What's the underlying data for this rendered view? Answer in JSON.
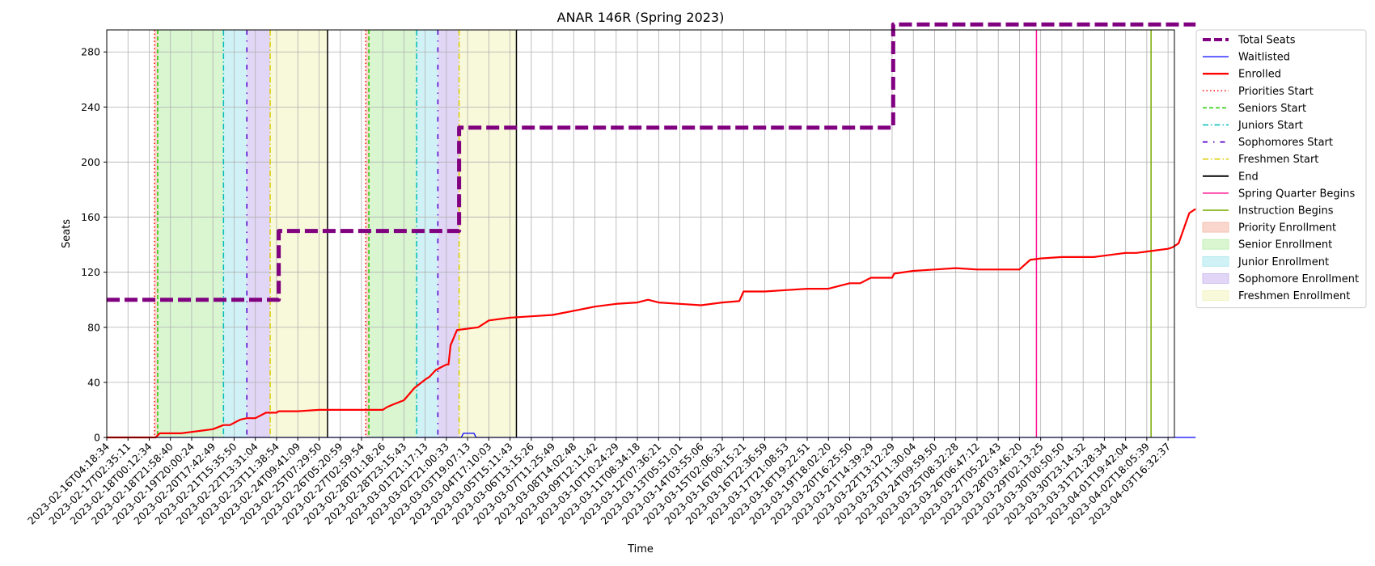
{
  "chart_data": {
    "type": "line",
    "title": "ANAR 146R (Spring 2023)",
    "xlabel": "Time",
    "ylabel": "Seats",
    "ylim": [
      0,
      296
    ],
    "yticks": [
      0,
      40,
      80,
      120,
      160,
      200,
      240,
      280
    ],
    "grid": true,
    "legend_placement": "outside-right",
    "x_tick_labels": [
      "2023-02-16T04:18:34",
      "2023-02-17T02:35:11",
      "2023-02-18T00:12:34",
      "2023-02-18T21:58:40",
      "2023-02-19T20:00:24",
      "2023-02-20T17:42:49",
      "2023-02-21T15:35:50",
      "2023-02-22T13:31:04",
      "2023-02-23T11:38:54",
      "2023-02-24T09:41:09",
      "2023-02-25T07:29:50",
      "2023-02-26T05:20:59",
      "2023-02-27T02:59:54",
      "2023-02-28T01:18:26",
      "2023-02-28T23:15:43",
      "2023-03-01T21:17:13",
      "2023-03-02T21:00:33",
      "2023-03-03T19:07:13",
      "2023-03-04T17:10:03",
      "2023-03-05T15:11:43",
      "2023-03-06T13:15:26",
      "2023-03-07T11:25:49",
      "2023-03-08T14:02:48",
      "2023-03-09T12:11:42",
      "2023-03-10T10:24:29",
      "2023-03-11T08:34:18",
      "2023-03-12T07:36:21",
      "2023-03-13T05:51:01",
      "2023-03-14T03:55:06",
      "2023-03-15T02:06:32",
      "2023-03-16T00:15:21",
      "2023-03-16T22:36:59",
      "2023-03-17T21:08:53",
      "2023-03-18T19:22:51",
      "2023-03-19T18:02:20",
      "2023-03-20T16:25:50",
      "2023-03-21T14:39:29",
      "2023-03-22T13:12:29",
      "2023-03-23T11:30:04",
      "2023-03-24T09:59:50",
      "2023-03-25T08:32:28",
      "2023-03-26T06:47:12",
      "2023-03-27T05:22:43",
      "2023-03-28T03:46:20",
      "2023-03-29T02:13:25",
      "2023-03-30T00:50:50",
      "2023-03-30T23:14:32",
      "2023-03-31T21:28:34",
      "2023-04-01T19:42:04",
      "2023-04-02T18:05:39",
      "2023-04-03T16:32:37"
    ],
    "x_unit_note": "x values below are tick-index positions along the time axis",
    "series": [
      {
        "name": "Total Seats",
        "color": "#800080",
        "style": "dashed-thick",
        "x": [
          0,
          8.1,
          8.1,
          16.6,
          16.6,
          37.05,
          37.05,
          51.3
        ],
        "y": [
          100,
          100,
          150,
          150,
          225,
          225,
          300,
          300
        ]
      },
      {
        "name": "Waitlisted",
        "color": "#0000ff",
        "style": "solid",
        "x": [
          0,
          16.7,
          16.8,
          17.3,
          17.4,
          51.3
        ],
        "y": [
          0,
          0,
          3,
          3,
          0,
          0
        ]
      },
      {
        "name": "Enrolled",
        "color": "#ff0000",
        "style": "solid-thick",
        "x": [
          0,
          2.3,
          2.5,
          3,
          3.5,
          4,
          4.5,
          5,
          5.5,
          5.8,
          6.3,
          6.6,
          7,
          7.5,
          8,
          8.1,
          9,
          10,
          11,
          12,
          13,
          13.2,
          13.5,
          14,
          14.5,
          15,
          15.2,
          15.5,
          16,
          16.1,
          16.2,
          16.5,
          17,
          17.5,
          18,
          19,
          20,
          21,
          22,
          23,
          24,
          25,
          25.5,
          26,
          27,
          28,
          29,
          29.8,
          30,
          31,
          32,
          33,
          34,
          35,
          35.5,
          36,
          37,
          37.1,
          38,
          39,
          40,
          41,
          42,
          43,
          43.5,
          44,
          45,
          46,
          46.5,
          47,
          48,
          48.5,
          49,
          49.5,
          50,
          50.2,
          50.5,
          51,
          51.3
        ],
        "y": [
          0,
          0,
          3,
          3,
          3,
          4,
          5,
          6,
          9,
          9,
          13,
          14,
          14,
          18,
          18,
          19,
          19,
          20,
          20,
          20,
          20,
          22,
          24,
          27,
          36,
          42,
          44,
          49,
          53,
          53,
          67,
          78,
          79,
          80,
          85,
          87,
          88,
          89,
          92,
          95,
          97,
          98,
          100,
          98,
          97,
          96,
          98,
          99,
          106,
          106,
          107,
          108,
          108,
          112,
          112,
          116,
          116,
          119,
          121,
          122,
          123,
          122,
          122,
          122,
          129,
          130,
          131,
          131,
          131,
          132,
          134,
          134,
          135,
          136,
          137,
          138,
          141,
          163,
          166
        ]
      }
    ],
    "vlines": [
      {
        "name": "Priorities Start",
        "color": "#ff0000",
        "style": "dotted",
        "x": [
          2.25,
          12.2
        ]
      },
      {
        "name": "Seniors Start",
        "color": "#22cc00",
        "style": "dashed",
        "x": [
          2.4,
          12.35
        ]
      },
      {
        "name": "Juniors Start",
        "color": "#00bbbb",
        "style": "dashdot",
        "x": [
          5.5,
          14.6
        ]
      },
      {
        "name": "Sophomores Start",
        "color": "#5500cc",
        "style": "loosedashdot",
        "x": [
          6.6,
          15.6
        ]
      },
      {
        "name": "Freshmen Start",
        "color": "#ddcc00",
        "style": "dashdot",
        "x": [
          7.7,
          16.6
        ]
      },
      {
        "name": "End",
        "color": "#000000",
        "style": "solid",
        "x": [
          10.4,
          19.3
        ]
      },
      {
        "name": "Spring Quarter Begins",
        "color": "#ff1493",
        "style": "solid",
        "x": [
          43.8
        ]
      },
      {
        "name": "Instruction Begins",
        "color": "#77aa00",
        "style": "solid",
        "x": [
          49.2
        ]
      }
    ],
    "spans": [
      {
        "name": "Priority Enrollment",
        "color": "#f4b6a4",
        "ranges": [
          [
            2.25,
            2.4
          ],
          [
            12.2,
            12.35
          ]
        ]
      },
      {
        "name": "Senior Enrollment",
        "color": "#b9eeab",
        "ranges": [
          [
            2.4,
            5.5
          ],
          [
            12.35,
            14.6
          ]
        ]
      },
      {
        "name": "Junior Enrollment",
        "color": "#a9e7ee",
        "ranges": [
          [
            5.5,
            6.6
          ],
          [
            14.6,
            15.6
          ]
        ]
      },
      {
        "name": "Sophomore Enrollment",
        "color": "#c9b5ee",
        "ranges": [
          [
            6.6,
            7.7
          ],
          [
            15.6,
            16.6
          ]
        ]
      },
      {
        "name": "Freshmen Enrollment",
        "color": "#f2f2bb",
        "ranges": [
          [
            7.7,
            10.4
          ],
          [
            16.6,
            19.3
          ]
        ]
      }
    ],
    "legend": [
      {
        "label": "Total Seats",
        "kind": "line",
        "color": "#800080",
        "dash": "10,4",
        "width": 4
      },
      {
        "label": "Waitlisted",
        "kind": "line",
        "color": "#0000ff",
        "dash": "",
        "width": 1.2
      },
      {
        "label": "Enrolled",
        "kind": "line",
        "color": "#ff0000",
        "dash": "",
        "width": 2.4
      },
      {
        "label": "Priorities Start",
        "kind": "line",
        "color": "#ff0000",
        "dash": "1.5,3",
        "width": 1.5
      },
      {
        "label": "Seniors Start",
        "kind": "line",
        "color": "#22cc00",
        "dash": "5,3",
        "width": 1.5
      },
      {
        "label": "Juniors Start",
        "kind": "line",
        "color": "#00bbbb",
        "dash": "7,3,1.5,3",
        "width": 1.5
      },
      {
        "label": "Sophomores Start",
        "kind": "line",
        "color": "#5500cc",
        "dash": "6,7,1.5,7",
        "width": 1.8
      },
      {
        "label": "Freshmen Start",
        "kind": "line",
        "color": "#ddcc00",
        "dash": "7,3,1.5,3",
        "width": 1.5
      },
      {
        "label": "End",
        "kind": "line",
        "color": "#000000",
        "dash": "",
        "width": 1.8
      },
      {
        "label": "Spring Quarter Begins",
        "kind": "line",
        "color": "#ff1493",
        "dash": "",
        "width": 1.5
      },
      {
        "label": "Instruction Begins",
        "kind": "line",
        "color": "#77aa00",
        "dash": "",
        "width": 1.5
      },
      {
        "label": "Priority Enrollment",
        "kind": "patch",
        "color": "#f4b6a4"
      },
      {
        "label": "Senior Enrollment",
        "kind": "patch",
        "color": "#b9eeab"
      },
      {
        "label": "Junior Enrollment",
        "kind": "patch",
        "color": "#a9e7ee"
      },
      {
        "label": "Sophomore Enrollment",
        "kind": "patch",
        "color": "#c9b5ee"
      },
      {
        "label": "Freshmen Enrollment",
        "kind": "patch",
        "color": "#f2f2bb"
      }
    ]
  }
}
